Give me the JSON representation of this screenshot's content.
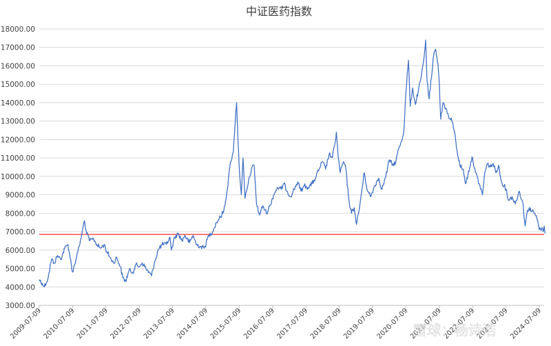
{
  "chart_data": {
    "type": "line",
    "title": "中证医药指数",
    "xlabel": "",
    "ylabel": "",
    "ylim": [
      3000,
      18000
    ],
    "yticks": [
      "3000.00",
      "4000.00",
      "5000.00",
      "6000.00",
      "7000.00",
      "8000.00",
      "9000.00",
      "10000.00",
      "11000.00",
      "12000.00",
      "13000.00",
      "14000.00",
      "15000.00",
      "16000.00",
      "17000.00",
      "18000.00"
    ],
    "xticks": [
      "2009-07-09",
      "2010-07-09",
      "2011-07-09",
      "2012-07-09",
      "2013-07-09",
      "2014-07-09",
      "2015-07-09",
      "2016-07-09",
      "2017-07-09",
      "2018-07-09",
      "2019-07-09",
      "2020-07-09",
      "2021-07-09",
      "2022-07-09",
      "2023-07-09",
      "2024-07-09"
    ],
    "grid": true,
    "legend": "none",
    "series": [
      {
        "color": "#4472c4",
        "points": [
          [
            "2009-07-09",
            4400
          ],
          [
            "2009-08-10",
            4200
          ],
          [
            "2009-09-01",
            4000
          ],
          [
            "2009-10-15",
            4500
          ],
          [
            "2009-11-20",
            5500
          ],
          [
            "2009-12-20",
            5300
          ],
          [
            "2010-01-25",
            5700
          ],
          [
            "2010-03-01",
            5500
          ],
          [
            "2010-04-15",
            6100
          ],
          [
            "2010-05-20",
            6300
          ],
          [
            "2010-07-09",
            4800
          ],
          [
            "2010-08-15",
            5500
          ],
          [
            "2010-09-20",
            6200
          ],
          [
            "2010-10-20",
            6900
          ],
          [
            "2010-11-15",
            7600
          ],
          [
            "2010-12-10",
            6900
          ],
          [
            "2011-01-15",
            6500
          ],
          [
            "2011-02-25",
            6600
          ],
          [
            "2011-04-01",
            6300
          ],
          [
            "2011-05-10",
            6100
          ],
          [
            "2011-06-20",
            6300
          ],
          [
            "2011-07-20",
            5900
          ],
          [
            "2011-08-25",
            5600
          ],
          [
            "2011-09-30",
            5300
          ],
          [
            "2011-11-05",
            5600
          ],
          [
            "2011-12-15",
            5100
          ],
          [
            "2012-01-10",
            4500
          ],
          [
            "2012-02-10",
            4300
          ],
          [
            "2012-03-20",
            4900
          ],
          [
            "2012-05-01",
            4800
          ],
          [
            "2012-06-01",
            5200
          ],
          [
            "2012-07-05",
            5100
          ],
          [
            "2012-08-10",
            5300
          ],
          [
            "2012-09-20",
            5000
          ],
          [
            "2012-11-20",
            4600
          ],
          [
            "2012-12-20",
            5300
          ],
          [
            "2013-02-01",
            6000
          ],
          [
            "2013-03-15",
            6300
          ],
          [
            "2013-05-01",
            6300
          ],
          [
            "2013-06-10",
            6700
          ],
          [
            "2013-06-25",
            6000
          ],
          [
            "2013-08-01",
            6700
          ],
          [
            "2013-09-10",
            6900
          ],
          [
            "2013-10-20",
            6500
          ],
          [
            "2013-11-20",
            6800
          ],
          [
            "2014-01-10",
            6400
          ],
          [
            "2014-02-20",
            6800
          ],
          [
            "2014-03-25",
            6300
          ],
          [
            "2014-05-10",
            6200
          ],
          [
            "2014-06-20",
            6100
          ],
          [
            "2014-08-10",
            6800
          ],
          [
            "2014-09-20",
            7000
          ],
          [
            "2014-11-01",
            7500
          ],
          [
            "2014-12-15",
            7800
          ],
          [
            "2015-01-20",
            8100
          ],
          [
            "2015-03-01",
            9300
          ],
          [
            "2015-04-05",
            10800
          ],
          [
            "2015-05-05",
            11300
          ],
          [
            "2015-06-01",
            13500
          ],
          [
            "2015-06-10",
            14000
          ],
          [
            "2015-06-25",
            12000
          ],
          [
            "2015-07-09",
            10500
          ],
          [
            "2015-08-01",
            9000
          ],
          [
            "2015-08-20",
            11000
          ],
          [
            "2015-09-10",
            8800
          ],
          [
            "2015-10-15",
            9600
          ],
          [
            "2015-11-20",
            10400
          ],
          [
            "2015-12-20",
            10600
          ],
          [
            "2016-01-15",
            8500
          ],
          [
            "2016-02-15",
            7900
          ],
          [
            "2016-03-25",
            8400
          ],
          [
            "2016-05-01",
            8000
          ],
          [
            "2016-06-10",
            8400
          ],
          [
            "2016-07-20",
            9000
          ],
          [
            "2016-09-01",
            9400
          ],
          [
            "2016-10-10",
            9300
          ],
          [
            "2016-11-10",
            9600
          ],
          [
            "2016-12-15",
            9200
          ],
          [
            "2017-01-20",
            8900
          ],
          [
            "2017-03-01",
            9300
          ],
          [
            "2017-04-10",
            9700
          ],
          [
            "2017-05-15",
            9200
          ],
          [
            "2017-06-20",
            9500
          ],
          [
            "2017-08-01",
            9400
          ],
          [
            "2017-09-15",
            9600
          ],
          [
            "2017-10-20",
            9900
          ],
          [
            "2017-12-01",
            10400
          ],
          [
            "2018-01-05",
            10800
          ],
          [
            "2018-02-10",
            10400
          ],
          [
            "2018-03-20",
            11200
          ],
          [
            "2018-04-25",
            11000
          ],
          [
            "2018-05-20",
            11700
          ],
          [
            "2018-06-08",
            12400
          ],
          [
            "2018-06-25",
            11200
          ],
          [
            "2018-07-20",
            10200
          ],
          [
            "2018-08-25",
            10800
          ],
          [
            "2018-09-20",
            10400
          ],
          [
            "2018-10-20",
            8800
          ],
          [
            "2018-11-20",
            8000
          ],
          [
            "2018-12-20",
            8300
          ],
          [
            "2019-01-15",
            7400
          ],
          [
            "2019-02-10",
            8100
          ],
          [
            "2019-03-15",
            9300
          ],
          [
            "2019-04-10",
            10200
          ],
          [
            "2019-05-15",
            9200
          ],
          [
            "2019-06-20",
            8900
          ],
          [
            "2019-08-01",
            9500
          ],
          [
            "2019-09-15",
            9900
          ],
          [
            "2019-10-20",
            9300
          ],
          [
            "2019-12-01",
            10000
          ],
          [
            "2020-01-10",
            10900
          ],
          [
            "2020-02-15",
            10600
          ],
          [
            "2020-03-20",
            10800
          ],
          [
            "2020-04-20",
            11500
          ],
          [
            "2020-05-20",
            11900
          ],
          [
            "2020-06-15",
            12400
          ],
          [
            "2020-07-09",
            14600
          ],
          [
            "2020-08-05",
            16300
          ],
          [
            "2020-08-25",
            13800
          ],
          [
            "2020-09-20",
            14800
          ],
          [
            "2020-10-20",
            13900
          ],
          [
            "2020-11-20",
            14600
          ],
          [
            "2020-12-20",
            15300
          ],
          [
            "2021-01-20",
            16300
          ],
          [
            "2021-02-10",
            17400
          ],
          [
            "2021-02-25",
            15200
          ],
          [
            "2021-03-20",
            14200
          ],
          [
            "2021-04-20",
            15600
          ],
          [
            "2021-05-10",
            16600
          ],
          [
            "2021-06-01",
            16900
          ],
          [
            "2021-06-25",
            16100
          ],
          [
            "2021-07-09",
            15100
          ],
          [
            "2021-07-25",
            13100
          ],
          [
            "2021-08-20",
            14000
          ],
          [
            "2021-09-20",
            13700
          ],
          [
            "2021-10-20",
            13200
          ],
          [
            "2021-11-25",
            13000
          ],
          [
            "2021-12-20",
            12500
          ],
          [
            "2022-01-20",
            11400
          ],
          [
            "2022-02-20",
            10600
          ],
          [
            "2022-03-25",
            10400
          ],
          [
            "2022-04-25",
            9600
          ],
          [
            "2022-05-20",
            10100
          ],
          [
            "2022-06-20",
            10800
          ],
          [
            "2022-07-09",
            11000
          ],
          [
            "2022-08-10",
            10200
          ],
          [
            "2022-09-20",
            9600
          ],
          [
            "2022-10-25",
            9000
          ],
          [
            "2022-11-20",
            10200
          ],
          [
            "2022-12-20",
            10700
          ],
          [
            "2023-01-20",
            10500
          ],
          [
            "2023-02-20",
            10700
          ],
          [
            "2023-03-20",
            10200
          ],
          [
            "2023-04-20",
            10600
          ],
          [
            "2023-05-20",
            9700
          ],
          [
            "2023-06-20",
            9500
          ],
          [
            "2023-07-09",
            9300
          ],
          [
            "2023-08-10",
            8700
          ],
          [
            "2023-09-15",
            8900
          ],
          [
            "2023-10-20",
            8500
          ],
          [
            "2023-12-01",
            9200
          ],
          [
            "2024-01-10",
            8600
          ],
          [
            "2024-02-05",
            7300
          ],
          [
            "2024-02-25",
            8000
          ],
          [
            "2024-03-20",
            8300
          ],
          [
            "2024-04-20",
            8100
          ],
          [
            "2024-05-20",
            8000
          ],
          [
            "2024-06-20",
            7600
          ],
          [
            "2024-07-09",
            7100
          ],
          [
            "2024-08-05",
            7200
          ],
          [
            "2024-08-20",
            7000
          ],
          [
            "2024-09-01",
            7300
          ],
          [
            "2024-09-12",
            6900
          ]
        ]
      }
    ],
    "reference_line": {
      "y": 6850,
      "color": "#ff4d4d"
    }
  },
  "watermark": {
    "text": "雪球：杨诗浩"
  }
}
